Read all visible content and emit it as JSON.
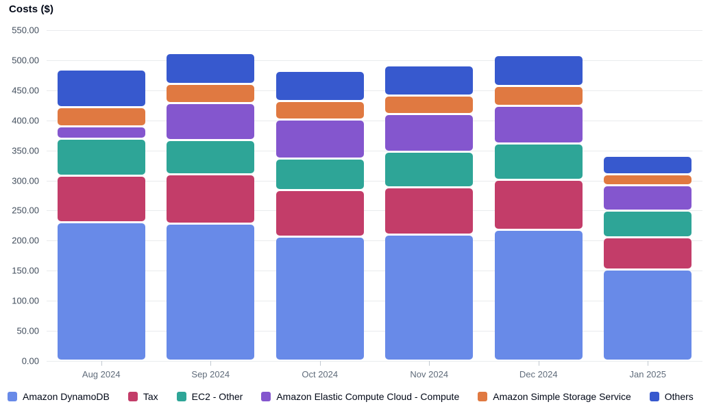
{
  "title": "Costs ($)",
  "chart_data": {
    "type": "bar",
    "stacked": true,
    "title": "Costs ($)",
    "ylabel": "Costs ($)",
    "xlabel": "",
    "categories": [
      "Aug 2024",
      "Sep 2024",
      "Oct 2024",
      "Nov 2024",
      "Dec 2024",
      "Jan 2025"
    ],
    "series": [
      {
        "name": "Amazon DynamoDB",
        "color": "#688AE8",
        "values": [
          231,
          228,
          207,
          210,
          218,
          152
        ]
      },
      {
        "name": "Tax",
        "color": "#C33D69",
        "values": [
          77,
          82,
          77,
          79,
          83,
          54
        ]
      },
      {
        "name": "EC2 - Other",
        "color": "#2EA597",
        "values": [
          61,
          57,
          52,
          59,
          60,
          44
        ]
      },
      {
        "name": "Amazon Elastic Compute Cloud - Compute",
        "color": "#8456CE",
        "values": [
          21,
          62,
          65,
          62,
          63,
          42
        ]
      },
      {
        "name": "Amazon Simple Storage Service",
        "color": "#E07941",
        "values": [
          32,
          32,
          31,
          31,
          33,
          18
        ]
      },
      {
        "name": "Others",
        "color": "#3759CE",
        "values": [
          61,
          49,
          49,
          49,
          50,
          29
        ]
      }
    ],
    "totals": [
      483,
      510,
      481,
      490,
      507,
      339
    ],
    "ylim": [
      0,
      550
    ],
    "ytick_step": 50,
    "ytick_labels": [
      "550.00",
      "500.00",
      "450.00",
      "400.00",
      "350.00",
      "300.00",
      "250.00",
      "200.00",
      "150.00",
      "100.00",
      "50.00",
      "0.00"
    ],
    "grid": "horizontal",
    "legend_position": "bottom"
  }
}
